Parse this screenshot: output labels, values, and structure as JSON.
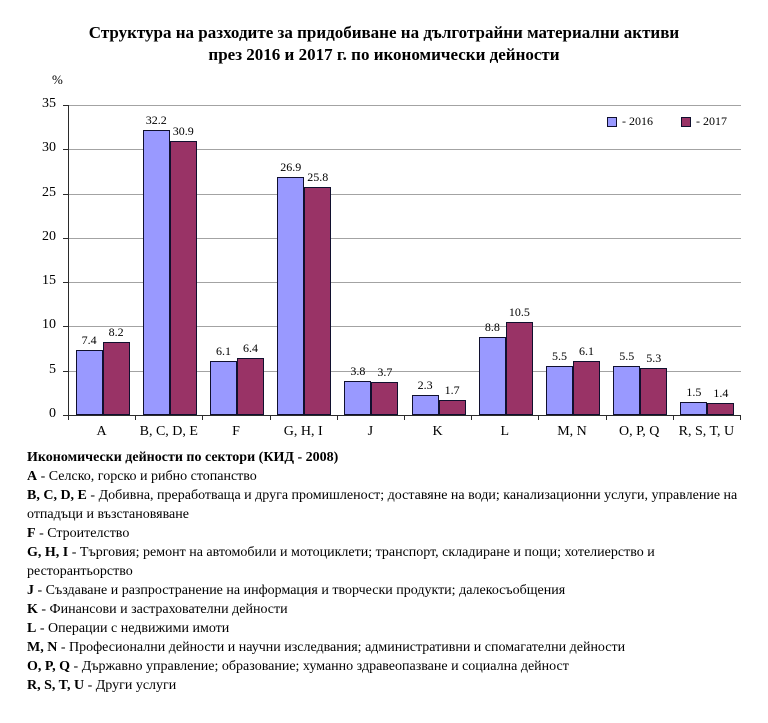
{
  "title": {
    "line1": "Структура на разходите за придобиване на дълготрайни материални активи",
    "line2": "през 2016 и 2017 г. по икономически дейности"
  },
  "chart_data": {
    "type": "bar",
    "title": "Структура на разходите за придобиване на дълготрайни материални активи през 2016 и 2017 г. по икономически дейности",
    "xlabel": "",
    "ylabel": "%",
    "ylim": [
      0,
      35
    ],
    "yticks": [
      0,
      5,
      10,
      15,
      20,
      25,
      30,
      35
    ],
    "grid": true,
    "legend_position": "top-right-inside",
    "categories": [
      "А",
      "B, C, D, E",
      "F",
      "G, H, I",
      "J",
      "K",
      "L",
      "M, N",
      "O, P, Q",
      "R, S, T, U"
    ],
    "series": [
      {
        "name": "- 2016",
        "color": "#9999FF",
        "values": [
          7.4,
          32.2,
          6.1,
          26.9,
          3.8,
          2.3,
          8.8,
          5.5,
          5.5,
          1.5
        ]
      },
      {
        "name": "- 2017",
        "color": "#993366",
        "values": [
          8.2,
          30.9,
          6.4,
          25.8,
          3.7,
          1.7,
          10.5,
          6.1,
          5.3,
          1.4
        ]
      }
    ]
  },
  "footnotes": {
    "header": "Икономически дейности по сектори (КИД - 2008)",
    "items": [
      {
        "term": "А",
        "desc": "Селско, горско и рибно стопанство"
      },
      {
        "term": "B, C, D, E",
        "desc": "Добивна, преработваща и друга промишленост; доставяне на води; канализационни услуги, управление на отпадъци и възстановяване"
      },
      {
        "term": "F",
        "desc": "Строителство"
      },
      {
        "term": "G, H, I",
        "desc": "Търговия; ремонт на автомобили и мотоциклети; транспорт, складиране и пощи; хотелиерство и ресторантьорство"
      },
      {
        "term": "J",
        "desc": "Създаване и разпространение на информация и творчески продукти; далекосъобщения"
      },
      {
        "term": "K",
        "desc": "Финансови и застрахователни дейности"
      },
      {
        "term": "L",
        "desc": "Операции с недвижими имоти"
      },
      {
        "term": "M, N",
        "desc": "Професионални дейности и научни изследвания; административни и спомагателни дейности"
      },
      {
        "term": "O, P, Q",
        "desc": "Държавно управление; образование; хуманно здравеопазване и социална дейност"
      },
      {
        "term": "R, S, T, U",
        "desc": "Други услуги"
      }
    ]
  },
  "colors": {
    "series_2016": "#9999FF",
    "series_2017": "#993366",
    "bar_border": "#10102E",
    "gridline": "#A3A3A3",
    "axis": "#2B2B2B",
    "background": "#FFFFFF"
  }
}
